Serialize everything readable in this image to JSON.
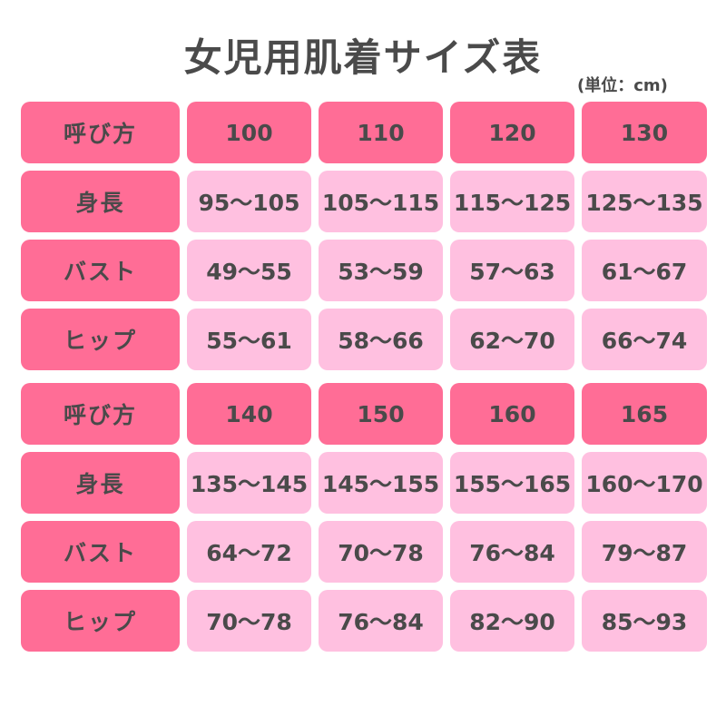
{
  "title": "女児用肌着サイズ表",
  "unit": "(単位：cm)",
  "colors": {
    "header": "#ff6d96",
    "value": "#ffc0e0",
    "text": "#4a4a4a"
  },
  "tables": [
    {
      "header_label": "呼び方",
      "sizes": [
        "100",
        "110",
        "120",
        "130"
      ],
      "rows": [
        {
          "label": "身長",
          "values": [
            "95〜105",
            "105〜115",
            "115〜125",
            "125〜135"
          ]
        },
        {
          "label": "バスト",
          "values": [
            "49〜55",
            "53〜59",
            "57〜63",
            "61〜67"
          ]
        },
        {
          "label": "ヒップ",
          "values": [
            "55〜61",
            "58〜66",
            "62〜70",
            "66〜74"
          ]
        }
      ]
    },
    {
      "header_label": "呼び方",
      "sizes": [
        "140",
        "150",
        "160",
        "165"
      ],
      "rows": [
        {
          "label": "身長",
          "values": [
            "135〜145",
            "145〜155",
            "155〜165",
            "160〜170"
          ]
        },
        {
          "label": "バスト",
          "values": [
            "64〜72",
            "70〜78",
            "76〜84",
            "79〜87"
          ]
        },
        {
          "label": "ヒップ",
          "values": [
            "70〜78",
            "76〜84",
            "82〜90",
            "85〜93"
          ]
        }
      ]
    }
  ]
}
